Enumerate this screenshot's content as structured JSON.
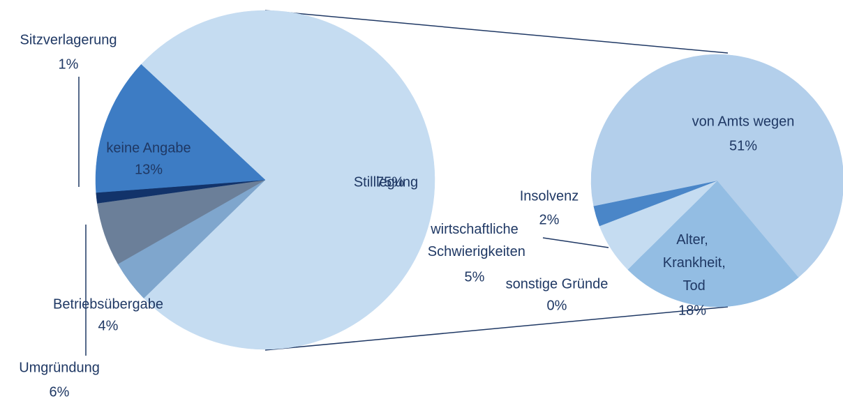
{
  "chart_data": [
    {
      "type": "pie",
      "categories": [
        "Stilllegung",
        "Betriebsübergabe",
        "Umgründung",
        "Sitzverlagerung",
        "keine Angabe"
      ],
      "values": [
        75,
        4,
        6,
        1,
        13
      ],
      "value_labels": [
        "75%",
        "4%",
        "6%",
        "1%",
        "13%"
      ],
      "colors": [
        "#c5dcf1",
        "#7fa6cd",
        "#6b7f99",
        "#12336a",
        "#3d7cc4"
      ]
    },
    {
      "type": "pie",
      "categories": [
        "Alter, Krankheit, Tod",
        "sonstige Gründe",
        "wirtschaftliche Schwierigkeiten",
        "Insolvenz",
        "von Amts wegen"
      ],
      "values": [
        18,
        0,
        5,
        2,
        51
      ],
      "value_labels": [
        "18%",
        "0%",
        "5%",
        "2%",
        "51%"
      ],
      "colors": [
        "#93bde3",
        "#d6e6f5",
        "#c5dcf1",
        "#4a86c8",
        "#b3cfeb"
      ]
    }
  ]
}
